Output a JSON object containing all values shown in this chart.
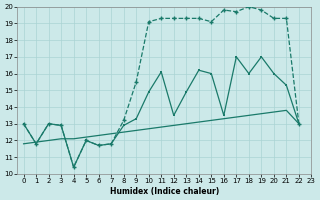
{
  "xlabel": "Humidex (Indice chaleur)",
  "xlim": [
    -0.5,
    23
  ],
  "ylim": [
    10,
    20
  ],
  "xticks": [
    0,
    1,
    2,
    3,
    4,
    5,
    6,
    7,
    8,
    9,
    10,
    11,
    12,
    13,
    14,
    15,
    16,
    17,
    18,
    19,
    20,
    21,
    22,
    23
  ],
  "yticks": [
    10,
    11,
    12,
    13,
    14,
    15,
    16,
    17,
    18,
    19,
    20
  ],
  "bg_color": "#cce9e9",
  "grid_color": "#aad4d4",
  "line_color": "#1a7a6a",
  "line_top_x": [
    0,
    1,
    2,
    3,
    4,
    5,
    6,
    7,
    8,
    9,
    10,
    11,
    12,
    13,
    14,
    15,
    16,
    17,
    18,
    19,
    20,
    21,
    22
  ],
  "line_top_y": [
    13.0,
    11.8,
    13.0,
    12.9,
    10.4,
    12.0,
    11.7,
    11.8,
    13.2,
    15.5,
    19.1,
    19.3,
    19.3,
    19.3,
    19.3,
    19.1,
    19.8,
    19.7,
    20.0,
    19.8,
    19.3,
    19.3,
    13.0
  ],
  "line_mid_x": [
    0,
    1,
    2,
    3,
    4,
    5,
    6,
    7,
    8,
    9,
    10,
    11,
    12,
    13,
    14,
    15,
    16,
    17,
    18,
    19,
    20,
    21,
    22
  ],
  "line_mid_y": [
    13.0,
    11.8,
    13.0,
    12.9,
    10.4,
    12.0,
    11.7,
    11.8,
    12.9,
    13.3,
    14.9,
    16.1,
    13.5,
    14.9,
    16.2,
    16.0,
    13.5,
    17.0,
    16.0,
    17.0,
    16.0,
    15.3,
    13.0
  ],
  "line_bot_x": [
    0,
    1,
    2,
    3,
    4,
    5,
    6,
    7,
    8,
    9,
    10,
    11,
    12,
    13,
    14,
    15,
    16,
    17,
    18,
    19,
    20,
    21,
    22
  ],
  "line_bot_y": [
    11.8,
    11.9,
    12.0,
    12.1,
    12.1,
    12.2,
    12.3,
    12.4,
    12.5,
    12.6,
    12.7,
    12.8,
    12.9,
    13.0,
    13.1,
    13.2,
    13.3,
    13.4,
    13.5,
    13.6,
    13.7,
    13.8,
    13.0
  ]
}
